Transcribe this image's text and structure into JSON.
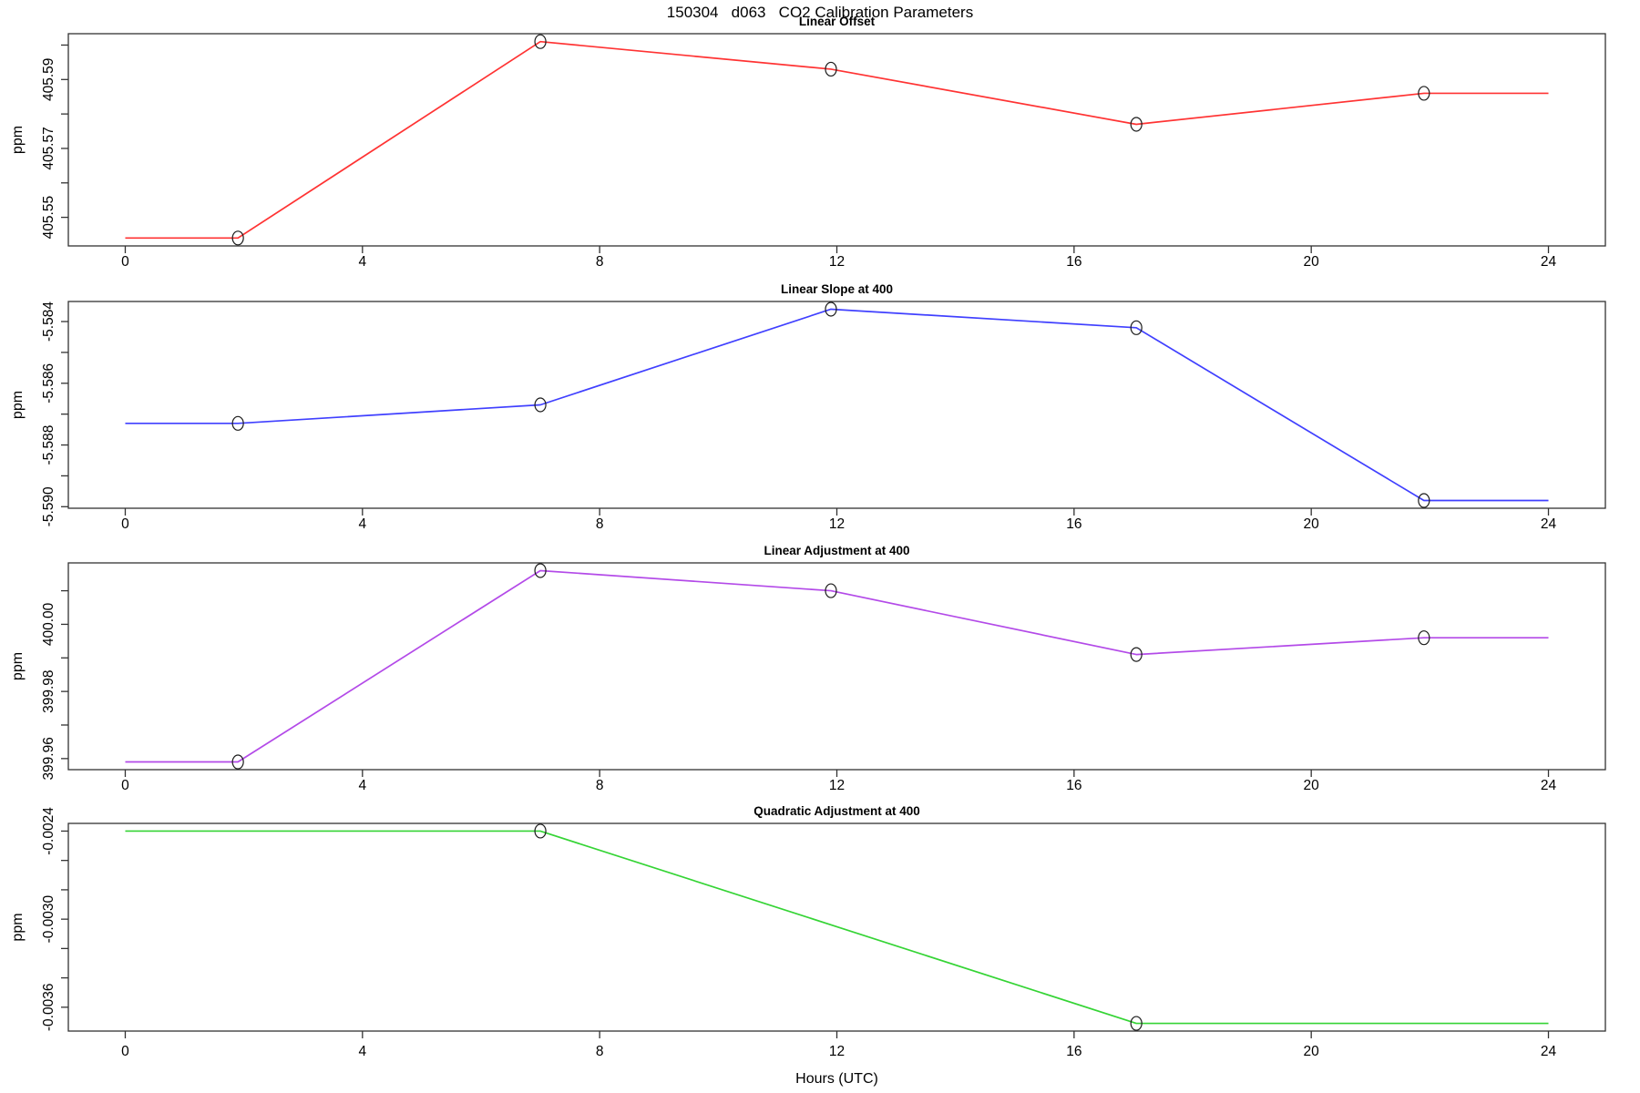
{
  "page_title": "150304   d063   CO2 Calibration Parameters",
  "xlabel": "Hours (UTC)",
  "x_ticks": [
    0,
    4,
    8,
    12,
    16,
    20,
    24
  ],
  "xlim": [
    -0.96,
    24.96
  ],
  "chart_data": [
    {
      "type": "line",
      "title": "Linear Offset",
      "ylabel": "ppm",
      "color": "#ff3333",
      "ylim": [
        405.5417,
        405.6033
      ],
      "yticks": [
        {
          "v": 405.55,
          "label": "405.55"
        },
        {
          "v": 405.56,
          "label": ""
        },
        {
          "v": 405.57,
          "label": "405.57"
        },
        {
          "v": 405.58,
          "label": ""
        },
        {
          "v": 405.59,
          "label": "405.59"
        },
        {
          "v": 405.6,
          "label": ""
        }
      ],
      "x": [
        0,
        1.9,
        7,
        11.9,
        17.05,
        21.9,
        24
      ],
      "y": [
        405.544,
        405.544,
        405.601,
        405.593,
        405.577,
        405.586,
        405.586
      ],
      "marker_x": [
        1.9,
        7,
        11.9,
        17.05,
        21.9
      ]
    },
    {
      "type": "line",
      "title": "Linear Slope at 400",
      "ylabel": "ppm",
      "color": "#4040ff",
      "ylim": [
        -5.59005,
        -5.58335
      ],
      "yticks": [
        {
          "v": -5.584,
          "label": "-5.584"
        },
        {
          "v": -5.585,
          "label": ""
        },
        {
          "v": -5.586,
          "label": "-5.586"
        },
        {
          "v": -5.587,
          "label": ""
        },
        {
          "v": -5.588,
          "label": "-5.588"
        },
        {
          "v": -5.589,
          "label": ""
        },
        {
          "v": -5.59,
          "label": "-5.590"
        }
      ],
      "x": [
        0,
        1.9,
        7,
        11.9,
        17.05,
        21.9,
        24
      ],
      "y": [
        -5.5873,
        -5.5873,
        -5.5867,
        -5.5836,
        -5.5842,
        -5.5898,
        -5.5898
      ],
      "marker_x": [
        1.9,
        7,
        11.9,
        17.05,
        21.9
      ]
    },
    {
      "type": "line",
      "title": "Linear Adjustment at 400",
      "ylabel": "ppm",
      "color": "#b34ae8",
      "ylim": [
        399.9567,
        400.0183
      ],
      "yticks": [
        {
          "v": 399.96,
          "label": "399.96"
        },
        {
          "v": 399.97,
          "label": ""
        },
        {
          "v": 399.98,
          "label": "399.98"
        },
        {
          "v": 399.99,
          "label": ""
        },
        {
          "v": 400.0,
          "label": "400.00"
        },
        {
          "v": 400.01,
          "label": ""
        }
      ],
      "x": [
        0,
        1.9,
        7,
        11.9,
        17.05,
        21.9,
        24
      ],
      "y": [
        399.959,
        399.959,
        400.016,
        400.01,
        399.991,
        399.996,
        399.996
      ],
      "marker_x": [
        1.9,
        7,
        11.9,
        17.05,
        21.9
      ]
    },
    {
      "type": "line",
      "title": "Quadratic Adjustment at 400",
      "ylabel": "ppm",
      "color": "#35d435",
      "ylim": [
        -0.0037624,
        -0.0023476
      ],
      "yticks": [
        {
          "v": -0.0024,
          "label": "-0.0024"
        },
        {
          "v": -0.0026,
          "label": ""
        },
        {
          "v": -0.0028,
          "label": ""
        },
        {
          "v": -0.003,
          "label": "-0.0030"
        },
        {
          "v": -0.0032,
          "label": ""
        },
        {
          "v": -0.0034,
          "label": ""
        },
        {
          "v": -0.0036,
          "label": "-0.0036"
        }
      ],
      "x": [
        0,
        7,
        17.05,
        24
      ],
      "y": [
        -0.0024,
        -0.0024,
        -0.00371,
        -0.00371
      ],
      "marker_x": [
        7,
        17.05
      ]
    }
  ]
}
